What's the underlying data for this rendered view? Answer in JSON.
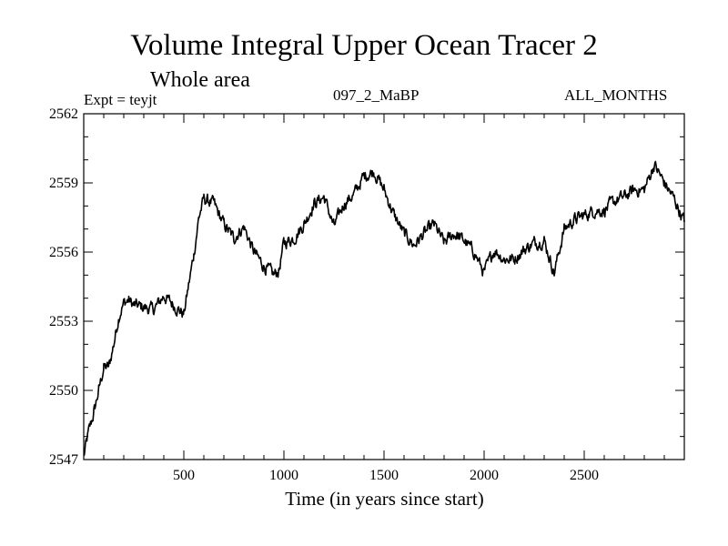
{
  "header": {
    "title": "Volume Integral Upper Ocean Tracer 2",
    "subtitle": "Whole area",
    "experiment": "Expt = teyjt",
    "run_id": "097_2_MaBP",
    "months": "ALL_MONTHS"
  },
  "chart_data": {
    "type": "line",
    "title": "Volume Integral Upper Ocean Tracer 2",
    "subtitle": "Whole area",
    "xlabel": "Time (in years since start)",
    "ylabel": "",
    "xlim": [
      0,
      3000
    ],
    "ylim": [
      2547,
      2562
    ],
    "xticks": [
      500,
      1000,
      1500,
      2000,
      2500
    ],
    "yticks": [
      2547,
      2550,
      2553,
      2556,
      2559,
      2562
    ],
    "grid": false,
    "series": [
      {
        "name": "Volume Integral Upper Ocean Tracer 2",
        "color": "#000000",
        "x": [
          0,
          10,
          25,
          50,
          75,
          100,
          125,
          150,
          175,
          200,
          225,
          250,
          300,
          350,
          400,
          450,
          500,
          550,
          575,
          600,
          625,
          650,
          700,
          750,
          800,
          850,
          900,
          950,
          975,
          1000,
          1050,
          1100,
          1150,
          1200,
          1250,
          1300,
          1350,
          1400,
          1450,
          1500,
          1550,
          1600,
          1650,
          1700,
          1750,
          1800,
          1850,
          1900,
          1950,
          2000,
          2050,
          2100,
          2150,
          2200,
          2250,
          2300,
          2350,
          2400,
          2450,
          2500,
          2550,
          2600,
          2650,
          2700,
          2750,
          2800,
          2850,
          2900,
          2950,
          3000
        ],
        "values": [
          2547.1,
          2547.6,
          2548.2,
          2549.0,
          2550.0,
          2551.0,
          2551.0,
          2552.0,
          2553.2,
          2553.8,
          2553.9,
          2553.7,
          2553.6,
          2553.5,
          2554.1,
          2553.7,
          2553.3,
          2555.9,
          2557.5,
          2558.3,
          2558.2,
          2558.1,
          2557.2,
          2556.6,
          2557.1,
          2556.0,
          2555.4,
          2555.0,
          2555.2,
          2556.4,
          2556.6,
          2557.2,
          2558.1,
          2558.4,
          2557.1,
          2558.1,
          2558.5,
          2559.3,
          2559.5,
          2558.7,
          2557.6,
          2556.8,
          2556.3,
          2556.8,
          2557.2,
          2556.4,
          2556.8,
          2556.5,
          2556.0,
          2555.1,
          2556.1,
          2555.7,
          2555.7,
          2556.1,
          2556.4,
          2556.5,
          2555.1,
          2557.0,
          2557.4,
          2557.6,
          2557.8,
          2557.8,
          2558.2,
          2558.4,
          2558.7,
          2558.7,
          2559.8,
          2559.0,
          2558.3,
          2557.3
        ]
      }
    ]
  }
}
